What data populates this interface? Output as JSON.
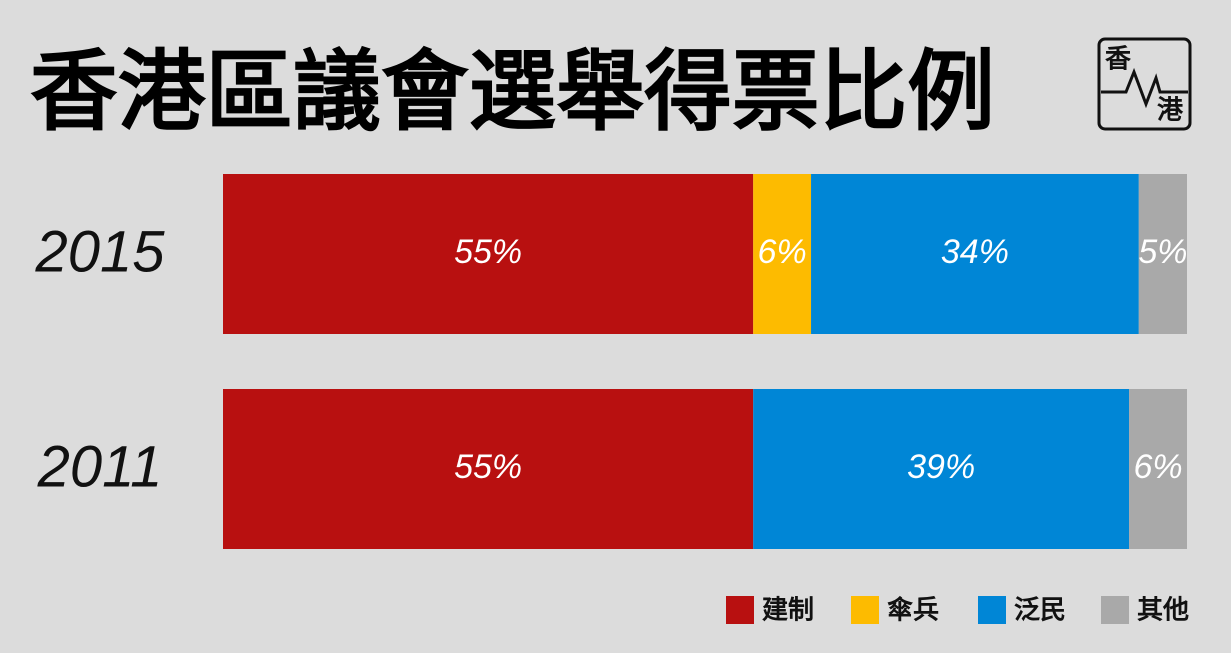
{
  "chart_data": {
    "type": "stacked-bar-horizontal",
    "title": "香港區議會選舉得票比例",
    "categories": [
      "2015",
      "2011"
    ],
    "series": [
      {
        "name": "建制",
        "color": "#b81010",
        "values": [
          55,
          55
        ],
        "value_labels": [
          "55%",
          "55%"
        ]
      },
      {
        "name": "傘兵",
        "color": "#fdbb00",
        "values": [
          6,
          null
        ],
        "value_labels": [
          "6%",
          null
        ]
      },
      {
        "name": "泛民",
        "color": "#0086d6",
        "values": [
          34,
          39
        ],
        "value_labels": [
          "34%",
          "39%"
        ]
      },
      {
        "name": "其他",
        "color": "#a9a9a9",
        "values": [
          5,
          6
        ],
        "value_labels": [
          "5%",
          "6%"
        ]
      }
    ]
  },
  "logo": {
    "top": "香",
    "bottom": "港"
  }
}
